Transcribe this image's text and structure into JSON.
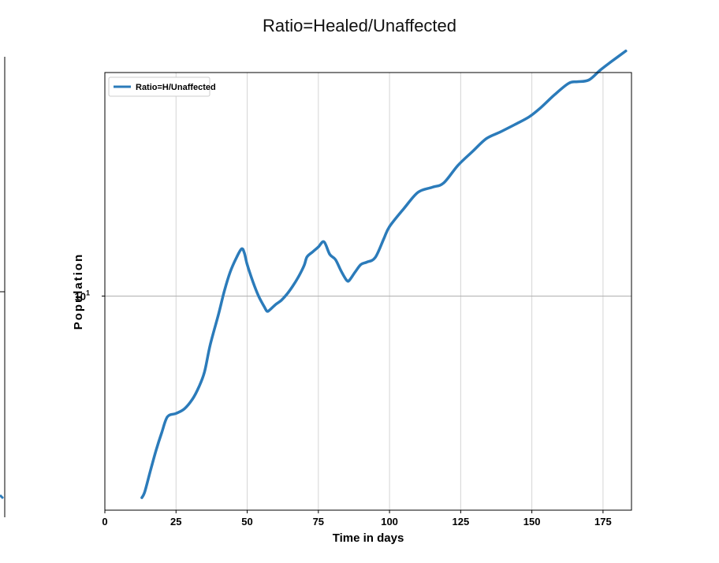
{
  "chart_data": {
    "type": "line",
    "title": "Ratio=Healed/Unaffected",
    "xlabel": "Time in days",
    "ylabel": "Population",
    "x_ticks": [
      "0",
      "25",
      "50",
      "75",
      "100",
      "125",
      "150",
      "175"
    ],
    "y_tick_labels": [
      {
        "base": "10",
        "exp": "1"
      }
    ],
    "y_scale": "log",
    "xlim": [
      0,
      185
    ],
    "ylim": [
      2.1,
      51.0
    ],
    "grid": true,
    "legend_position": "top-left",
    "colors": {
      "series": "#2b7bba"
    },
    "series": [
      {
        "name": "Ratio=H/Unaffected",
        "x": [
          13,
          14,
          16,
          18,
          20,
          22,
          25,
          28,
          31,
          33,
          35,
          37,
          40,
          42,
          44,
          46,
          48,
          49,
          50,
          52,
          54,
          56,
          57,
          58,
          60,
          62,
          64,
          66,
          68,
          70,
          71,
          73,
          75,
          77,
          79,
          81,
          83,
          85,
          86,
          88,
          90,
          92,
          95,
          98,
          100,
          105,
          110,
          115,
          119,
          124,
          129,
          134,
          139,
          144,
          149,
          153,
          158,
          163,
          166,
          170,
          174,
          178,
          183
        ],
        "y": [
          2.3,
          2.4,
          2.8,
          3.25,
          3.7,
          4.15,
          4.25,
          4.4,
          4.75,
          5.15,
          5.75,
          7.0,
          8.8,
          10.4,
          11.9,
          13.1,
          14.1,
          13.7,
          12.6,
          11.1,
          10.0,
          9.25,
          8.95,
          9.05,
          9.4,
          9.7,
          10.15,
          10.75,
          11.5,
          12.5,
          13.3,
          13.8,
          14.3,
          14.85,
          13.55,
          13.05,
          12.0,
          11.2,
          11.25,
          11.95,
          12.6,
          12.8,
          13.25,
          15.2,
          16.6,
          18.9,
          21.3,
          22.1,
          22.8,
          25.9,
          28.6,
          31.5,
          33.1,
          34.9,
          36.9,
          39.4,
          43.4,
          47.2,
          47.7,
          48.3,
          51.9,
          55.3,
          59.7
        ]
      }
    ]
  }
}
